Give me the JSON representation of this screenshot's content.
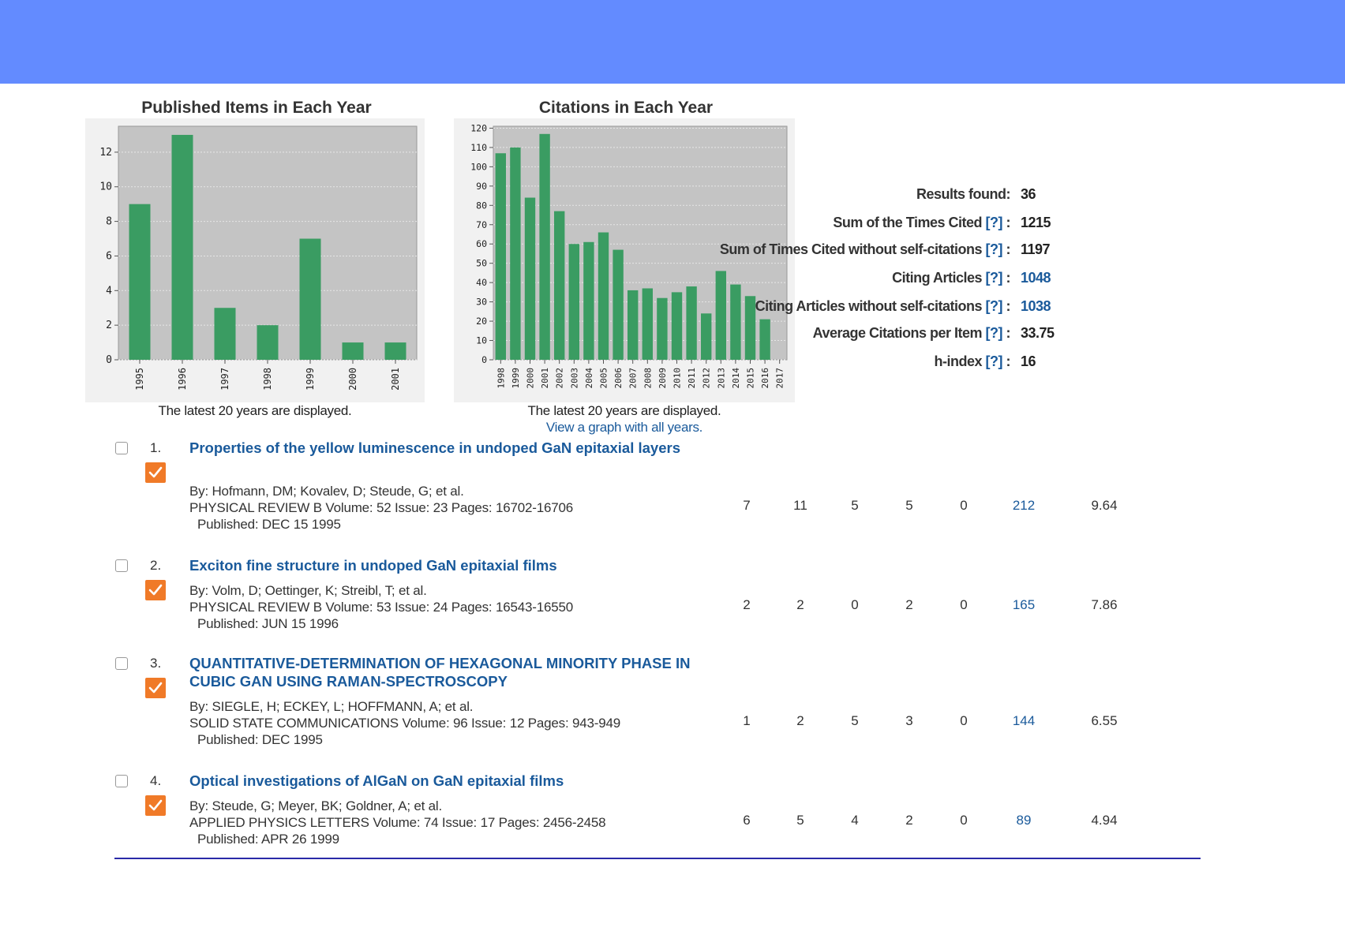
{
  "header": {
    "color": "#638bff"
  },
  "charts": [
    {
      "title": "Published Items in Each Year",
      "caption": "The latest 20 years are displayed."
    },
    {
      "title": "Citations in Each Year",
      "caption": "The latest 20 years are displayed.",
      "link": "View a graph with all years."
    }
  ],
  "chart_data": [
    {
      "type": "bar",
      "title": "Published Items in Each Year",
      "categories": [
        "1995",
        "1996",
        "1997",
        "1998",
        "1999",
        "2000",
        "2001"
      ],
      "values": [
        9,
        13,
        3,
        2,
        7,
        1,
        1
      ],
      "ylim": [
        0,
        13.5
      ],
      "yticks": [
        0,
        2,
        4,
        6,
        8,
        10,
        12
      ],
      "grid": true,
      "bar_color": "#3a9c62"
    },
    {
      "type": "bar",
      "title": "Citations in Each Year",
      "categories": [
        "1998",
        "1999",
        "2000",
        "2001",
        "2002",
        "2003",
        "2004",
        "2005",
        "2006",
        "2007",
        "2008",
        "2009",
        "2010",
        "2011",
        "2012",
        "2013",
        "2014",
        "2015",
        "2016",
        "2017"
      ],
      "values": [
        107,
        110,
        84,
        117,
        77,
        60,
        61,
        66,
        57,
        36,
        37,
        32,
        35,
        38,
        24,
        46,
        39,
        33,
        21,
        0
      ],
      "ylim": [
        0,
        121
      ],
      "yticks": [
        0,
        10,
        20,
        30,
        40,
        50,
        60,
        70,
        80,
        90,
        100,
        110,
        120
      ],
      "grid": true,
      "bar_color": "#3a9c62"
    }
  ],
  "stats": [
    {
      "label": "Results found:",
      "help": "",
      "value": "36",
      "link": false
    },
    {
      "label": "Sum of the Times Cited ",
      "help": "[?]",
      "value": "1215",
      "link": false
    },
    {
      "label": "Sum of Times Cited without self-citations ",
      "help": "[?]",
      "value": "1197",
      "link": false
    },
    {
      "label": "Citing Articles ",
      "help": "[?]",
      "value": "1048",
      "link": true
    },
    {
      "label": "Citing Articles without self-citations ",
      "help": "[?]",
      "value": "1038",
      "link": true
    },
    {
      "label": "Average Citations per Item ",
      "help": "[?]",
      "value": "33.75",
      "link": false
    },
    {
      "label": "h-index ",
      "help": "[?]",
      "value": "16",
      "link": false
    }
  ],
  "records": [
    {
      "num": "1.",
      "title": "Properties of the yellow luminescence in undoped GaN epitaxial layers",
      "authors": "By: Hofmann, DM; Kovalev, D; Steude, G; et al.",
      "source": "PHYSICAL REVIEW B  Volume: 52   Issue: 23   Pages: 16702-16706",
      "published": "Published: DEC 15 1995",
      "cells": [
        "7",
        "11",
        "5",
        "5",
        "0",
        "212",
        "9.64"
      ]
    },
    {
      "num": "2.",
      "title": "Exciton fine structure in undoped GaN epitaxial films",
      "authors": "By: Volm, D; Oettinger, K; Streibl, T; et al.",
      "source": "PHYSICAL REVIEW B  Volume: 53   Issue: 24   Pages: 16543-16550",
      "published": "Published: JUN 15 1996",
      "cells": [
        "2",
        "2",
        "0",
        "2",
        "0",
        "165",
        "7.86"
      ]
    },
    {
      "num": "3.",
      "title": "QUANTITATIVE-DETERMINATION OF HEXAGONAL MINORITY PHASE IN CUBIC GAN USING RAMAN-SPECTROSCOPY",
      "authors": "By: SIEGLE, H; ECKEY, L; HOFFMANN, A; et al.",
      "source": "SOLID STATE COMMUNICATIONS  Volume: 96   Issue: 12   Pages: 943-949",
      "published": "Published: DEC 1995",
      "cells": [
        "1",
        "2",
        "5",
        "3",
        "0",
        "144",
        "6.55"
      ]
    },
    {
      "num": "4.",
      "title": "Optical investigations of AlGaN on GaN epitaxial films",
      "authors": "By: Steude, G; Meyer, BK; Goldner, A; et al.",
      "source": "APPLIED PHYSICS LETTERS  Volume: 74   Issue: 17   Pages: 2456-2458",
      "published": "Published: APR 26 1999",
      "cells": [
        "6",
        "5",
        "4",
        "2",
        "0",
        "89",
        "4.94"
      ]
    }
  ]
}
